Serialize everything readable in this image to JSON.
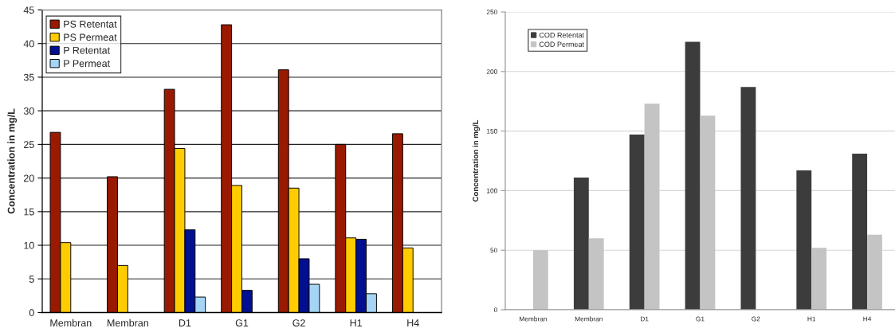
{
  "chart_data": [
    {
      "type": "bar",
      "categories": [
        "Membran",
        "Membran",
        "D1",
        "G1",
        "G2",
        "H1",
        "H4"
      ],
      "ylabel": "Concentration in mg/L",
      "ylim": [
        0,
        45
      ],
      "yticks": [
        0,
        5,
        10,
        15,
        20,
        25,
        30,
        35,
        40,
        45
      ],
      "grid": "y",
      "legend": "top left",
      "series": [
        {
          "name": "PS Retentat",
          "color": "#991a00",
          "values": [
            26.8,
            20.2,
            33.2,
            42.8,
            36.1,
            25.0,
            26.6
          ]
        },
        {
          "name": "PS Permeat",
          "color": "#ffcc00",
          "values": [
            10.4,
            7.0,
            24.4,
            18.9,
            18.5,
            11.1,
            9.6
          ]
        },
        {
          "name": "P Retentat",
          "color": "#001090",
          "values": [
            null,
            null,
            12.3,
            3.3,
            8.0,
            10.9,
            null
          ]
        },
        {
          "name": "P Permeat",
          "color": "#a6d4f5",
          "values": [
            null,
            null,
            2.3,
            null,
            4.2,
            2.8,
            null
          ]
        }
      ]
    },
    {
      "type": "bar",
      "categories": [
        "Membran",
        "Membran",
        "D1",
        "G1",
        "G2",
        "H1",
        "H4"
      ],
      "ylabel": "Concentration in mg/L",
      "ylim": [
        0,
        250
      ],
      "yticks": [
        0,
        50,
        100,
        150,
        200,
        250
      ],
      "grid": "y",
      "legend": "top left",
      "series": [
        {
          "name": "COD Retentat",
          "color": "#3c3c3c",
          "values": [
            null,
            111,
            147,
            225,
            187,
            117,
            131
          ]
        },
        {
          "name": "COD Permeat",
          "color": "#c4c4c4",
          "values": [
            50,
            60,
            173,
            163,
            null,
            52,
            63
          ]
        }
      ]
    }
  ]
}
